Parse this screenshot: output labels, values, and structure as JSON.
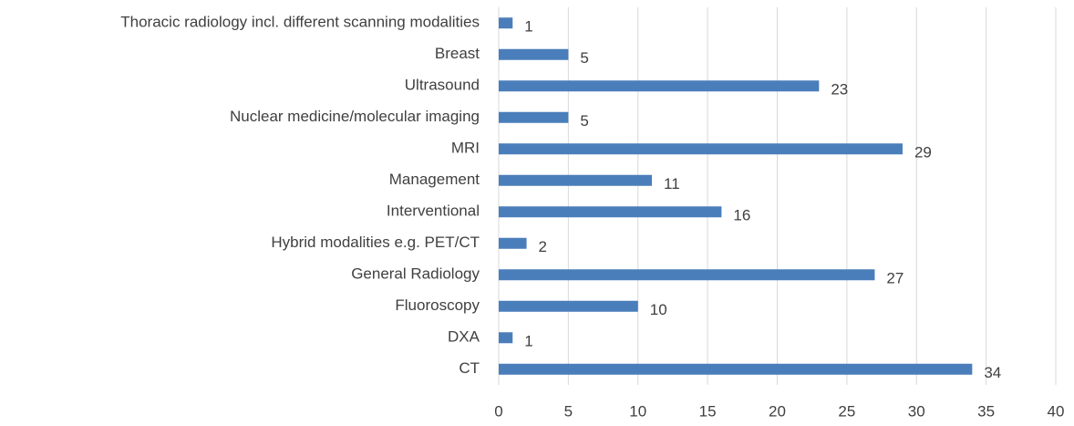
{
  "chart_data": {
    "type": "barh",
    "categories": [
      "CT",
      "DXA",
      "Fluoroscopy",
      "General Radiology",
      "Hybrid modalities e.g. PET/CT",
      "Interventional",
      "Management",
      "MRI",
      "Nuclear medicine/molecular imaging",
      "Ultrasound",
      "Breast",
      "Thoracic radiology incl. different scanning modalities"
    ],
    "values": [
      34,
      1,
      10,
      27,
      2,
      16,
      11,
      29,
      5,
      23,
      5,
      1
    ],
    "color": "#4a7ebb",
    "xlim": [
      0,
      40
    ],
    "xticks": [
      0,
      5,
      10,
      15,
      20,
      25,
      30,
      35,
      40
    ],
    "grid": true
  }
}
